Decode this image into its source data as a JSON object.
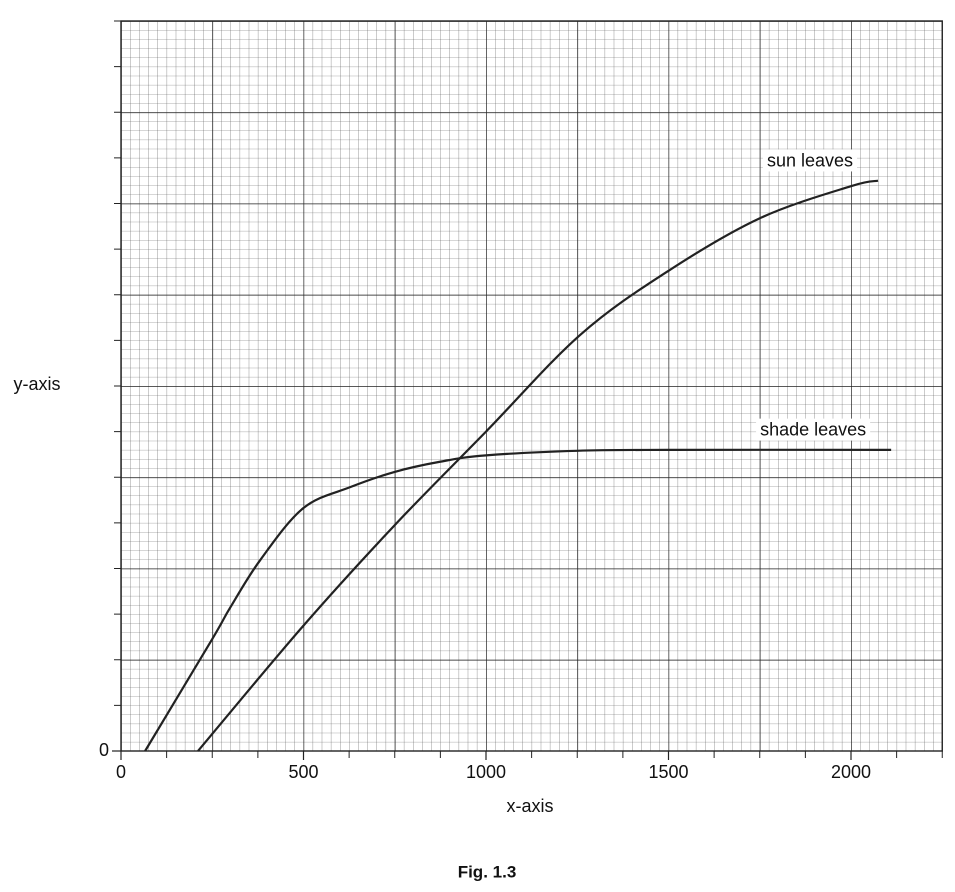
{
  "chart_data": {
    "type": "line",
    "caption": "Fig. 1.3",
    "xlabel": "x-axis",
    "ylabel": "y-axis",
    "xlim": [
      0,
      2250
    ],
    "xticks": [
      0,
      500,
      1000,
      1500,
      2000
    ],
    "ylim": [
      0,
      8
    ],
    "yticks": [
      0
    ],
    "grid": true,
    "series": [
      {
        "name": "sun leaves",
        "color": "#222222",
        "x": [
          211,
          499,
          751,
          1000,
          1258,
          1499,
          1751,
          2000,
          2074
        ],
        "values": [
          0,
          1.37,
          2.48,
          3.5,
          4.56,
          5.26,
          5.84,
          6.19,
          6.25
        ]
      },
      {
        "name": "shade leaves",
        "color": "#222222",
        "x": [
          66,
          249,
          299,
          381,
          499,
          627,
          751,
          874,
          1000,
          1249,
          1499,
          2110
        ],
        "values": [
          0,
          1.22,
          1.57,
          2.09,
          2.66,
          2.89,
          3.06,
          3.17,
          3.24,
          3.29,
          3.3,
          3.3
        ]
      }
    ]
  }
}
